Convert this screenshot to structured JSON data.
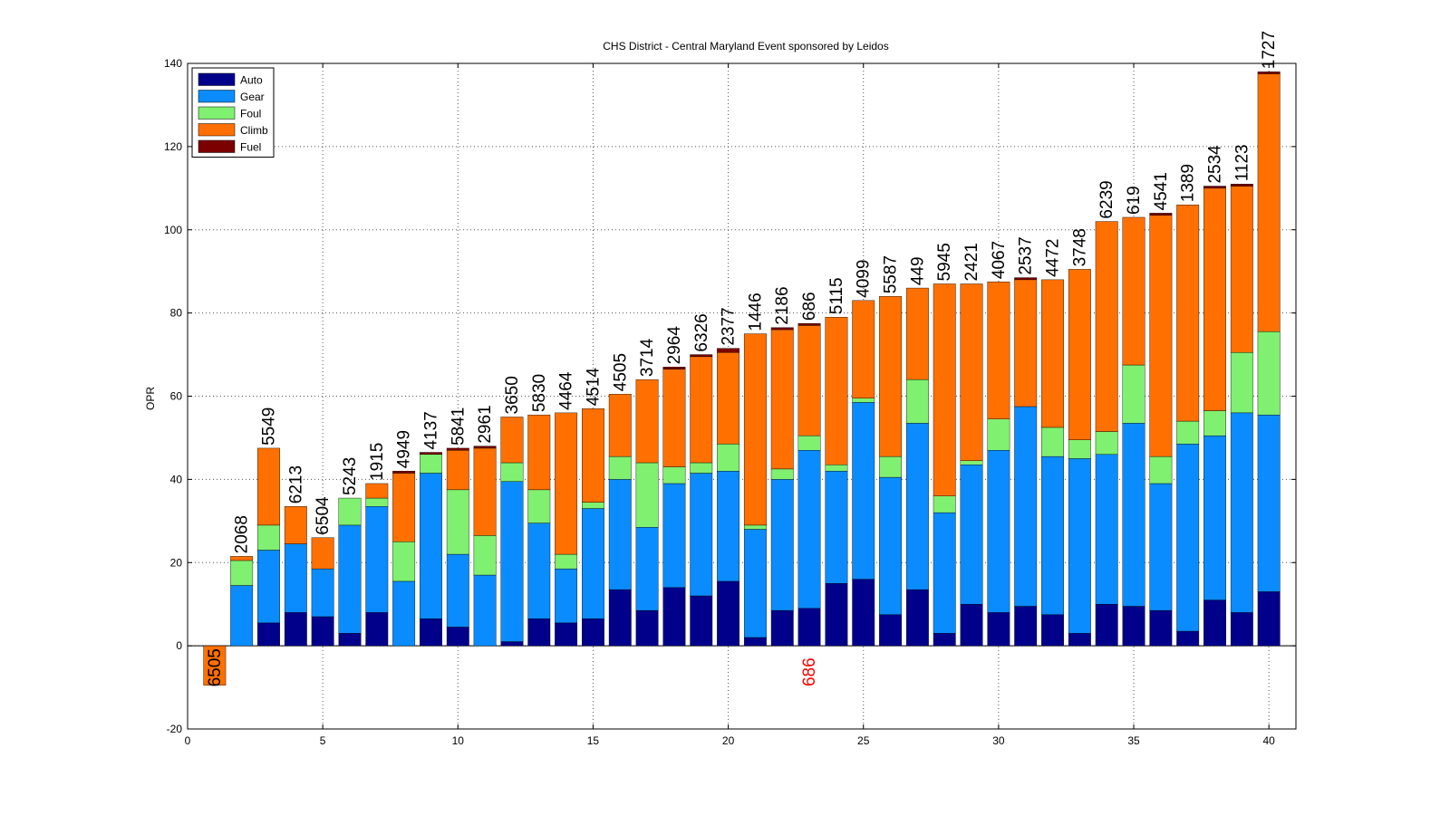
{
  "chart_data": {
    "type": "bar",
    "stacked": true,
    "title": "CHS District - Central Maryland Event sponsored by Leidos",
    "xlabel": "",
    "ylabel": "OPR",
    "xlim": [
      0,
      41
    ],
    "ylim": [
      -20,
      140
    ],
    "xticks": [
      0,
      5,
      10,
      15,
      20,
      25,
      30,
      35,
      40
    ],
    "yticks": [
      -20,
      0,
      20,
      40,
      60,
      80,
      100,
      120,
      140
    ],
    "grid": true,
    "legend_position": "top-left",
    "x": [
      1,
      2,
      3,
      4,
      5,
      6,
      7,
      8,
      9,
      10,
      11,
      12,
      13,
      14,
      15,
      16,
      17,
      18,
      19,
      20,
      21,
      22,
      23,
      24,
      25,
      26,
      27,
      28,
      29,
      30,
      31,
      32,
      33,
      34,
      35,
      36,
      37,
      38,
      39,
      40
    ],
    "teams": [
      "6505",
      "2068",
      "5549",
      "6213",
      "6504",
      "5243",
      "1915",
      "4949",
      "4137",
      "5841",
      "2961",
      "3650",
      "5830",
      "4464",
      "4514",
      "4505",
      "3714",
      "2964",
      "6326",
      "2377",
      "1446",
      "2186",
      "686",
      "5115",
      "4099",
      "5587",
      "449",
      "5945",
      "2421",
      "4067",
      "2537",
      "4472",
      "3748",
      "6239",
      "619",
      "4541",
      "1389",
      "2534",
      "1123",
      "1727"
    ],
    "highlight_label": "686",
    "highlight_color": "#ff0000",
    "series": [
      {
        "name": "Auto",
        "color": "#00008b",
        "values": [
          0,
          0,
          5.5,
          8,
          7,
          3,
          8,
          0,
          6.5,
          4.5,
          0,
          1,
          6.5,
          5.5,
          6.5,
          13.5,
          8.5,
          14,
          12,
          15.5,
          2,
          8.5,
          9,
          15,
          16,
          7.5,
          13.5,
          3,
          10,
          8,
          9.5,
          7.5,
          3,
          10,
          9.5,
          8.5,
          3.5,
          11,
          8,
          13
        ]
      },
      {
        "name": "Gear",
        "color": "#0a8cff",
        "values": [
          0,
          14.5,
          17.5,
          16.5,
          11.5,
          26,
          25.5,
          15.5,
          35,
          17.5,
          17,
          38.5,
          23,
          13,
          26.5,
          26.5,
          20,
          25,
          29.5,
          26.5,
          26,
          31.5,
          38,
          27,
          42.5,
          33,
          40,
          29,
          33.5,
          39,
          48,
          38,
          42,
          36,
          44,
          30.5,
          45,
          39.5,
          48,
          42.5
        ]
      },
      {
        "name": "Foul",
        "color": "#80f070",
        "values": [
          0,
          6,
          6,
          0,
          0,
          6.5,
          2,
          9.5,
          4.5,
          15.5,
          9.5,
          4.5,
          8,
          3.5,
          1.5,
          5.5,
          15.5,
          4,
          2.5,
          6.5,
          1,
          2.5,
          3.5,
          1.5,
          1,
          5,
          10.5,
          4,
          1,
          7.5,
          0,
          7,
          4.5,
          5.5,
          14,
          6.5,
          5.5,
          6,
          14.5,
          20
        ]
      },
      {
        "name": "Climb",
        "color": "#ff7000",
        "values": [
          -9.5,
          1,
          18.5,
          9,
          7.5,
          0,
          3.5,
          16.5,
          0,
          9.5,
          21,
          11,
          18,
          34,
          22.5,
          15,
          20,
          23.5,
          25.5,
          22,
          46,
          33.5,
          26.5,
          35.5,
          23.5,
          38.5,
          22,
          51,
          42.5,
          33,
          30.5,
          35.5,
          41,
          50.5,
          35.5,
          58,
          52,
          53.5,
          40,
          62
        ]
      },
      {
        "name": "Fuel",
        "color": "#7b0000",
        "values": [
          0,
          0,
          0,
          0,
          0,
          0,
          0,
          0.5,
          0.5,
          0.5,
          0.5,
          0,
          0,
          0,
          0,
          0,
          0,
          0.5,
          0.5,
          1,
          0,
          0.5,
          0.5,
          0,
          0,
          0,
          0,
          0,
          0,
          0,
          0.5,
          0,
          0,
          0,
          0,
          0.5,
          0,
          0.5,
          0.5,
          0.5
        ]
      }
    ]
  }
}
